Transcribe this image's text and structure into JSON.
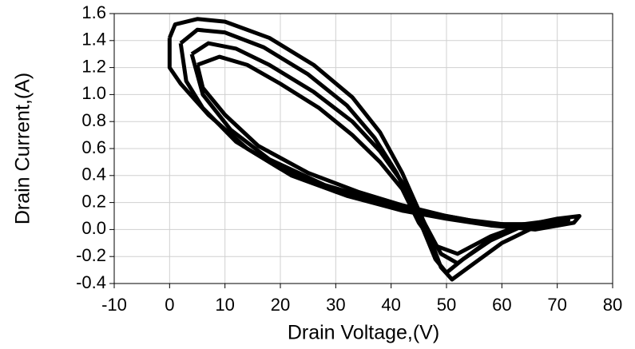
{
  "chart_data": {
    "type": "line",
    "xlabel": "Drain Voltage,(V)",
    "ylabel": "Drain Current,(A)",
    "xlim": [
      -10,
      80
    ],
    "xticks": [
      -10,
      0,
      10,
      20,
      30,
      40,
      50,
      60,
      70,
      80
    ],
    "ylim": [
      -0.4,
      1.6
    ],
    "yticks": [
      -0.4,
      -0.2,
      {
        "value": 0,
        "label": "0.0"
      },
      0.2,
      0.4,
      0.6,
      0.8,
      {
        "value": 1,
        "label": "1.0"
      },
      1.2,
      1.4,
      1.6
    ],
    "grid": true,
    "series": [
      {
        "color": "#000000",
        "x": [
          0,
          1,
          5,
          10,
          18,
          26,
          33,
          38,
          42,
          46,
          49,
          51,
          55,
          60,
          66,
          70,
          74,
          73,
          66,
          58,
          50,
          42,
          32,
          22,
          14,
          7,
          2,
          0,
          0
        ],
        "values": [
          1.42,
          1.52,
          1.56,
          1.54,
          1.42,
          1.22,
          0.98,
          0.72,
          0.42,
          0.05,
          -0.28,
          -0.37,
          -0.25,
          -0.1,
          0.02,
          0.08,
          0.1,
          0.05,
          0.0,
          0.03,
          0.08,
          0.14,
          0.25,
          0.4,
          0.6,
          0.85,
          1.08,
          1.2,
          1.42
        ]
      },
      {
        "color": "#000000",
        "x": [
          2,
          5,
          10,
          17,
          25,
          32,
          37,
          41,
          45,
          48,
          50,
          53,
          58,
          64,
          70,
          72,
          65,
          56,
          48,
          40,
          30,
          20,
          12,
          6,
          3,
          2
        ],
        "values": [
          1.38,
          1.48,
          1.46,
          1.35,
          1.15,
          0.92,
          0.68,
          0.42,
          0.08,
          -0.22,
          -0.32,
          -0.22,
          -0.08,
          0.03,
          0.08,
          0.07,
          0.02,
          0.05,
          0.1,
          0.17,
          0.28,
          0.45,
          0.65,
          0.9,
          1.1,
          1.38
        ]
      },
      {
        "color": "#000000",
        "x": [
          4,
          7,
          12,
          18,
          26,
          33,
          38,
          42,
          46,
          49,
          52,
          57,
          63,
          68,
          62,
          54,
          46,
          38,
          28,
          18,
          11,
          6,
          4
        ],
        "values": [
          1.3,
          1.38,
          1.34,
          1.22,
          1.02,
          0.8,
          0.58,
          0.35,
          0.05,
          -0.18,
          -0.25,
          -0.1,
          0.02,
          0.06,
          0.03,
          0.07,
          0.13,
          0.21,
          0.33,
          0.52,
          0.74,
          1.0,
          1.3
        ]
      },
      {
        "color": "#000000",
        "x": [
          5,
          9,
          14,
          20,
          27,
          33,
          38,
          42,
          45,
          48,
          52,
          58,
          64,
          58,
          50,
          42,
          34,
          25,
          16,
          10,
          6,
          5
        ],
        "values": [
          1.22,
          1.28,
          1.22,
          1.08,
          0.9,
          0.7,
          0.5,
          0.3,
          0.05,
          -0.12,
          -0.18,
          -0.05,
          0.04,
          0.04,
          0.1,
          0.18,
          0.28,
          0.42,
          0.62,
          0.85,
          1.05,
          1.22
        ]
      }
    ]
  }
}
